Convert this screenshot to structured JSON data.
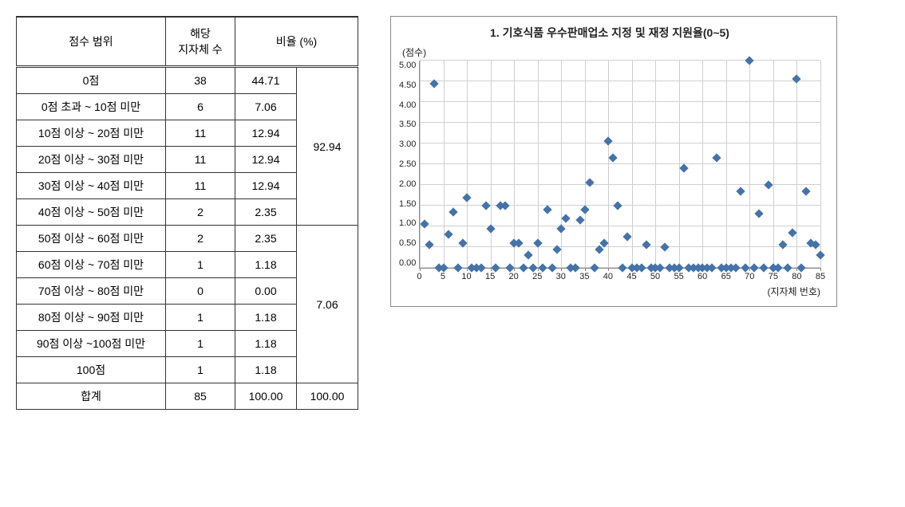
{
  "table": {
    "headers": {
      "range": "점수 범위",
      "count": "해당\n지자체 수",
      "ratio": "비율 (%)"
    },
    "rows": [
      {
        "range": "0점",
        "count": 38,
        "pct": "44.71"
      },
      {
        "range": "0점 초과 ~ 10점 미만",
        "count": 6,
        "pct": "7.06"
      },
      {
        "range": "10점 이상 ~ 20점 미만",
        "count": 11,
        "pct": "12.94"
      },
      {
        "range": "20점 이상 ~ 30점 미만",
        "count": 11,
        "pct": "12.94"
      },
      {
        "range": "30점 이상 ~ 40점 미만",
        "count": 11,
        "pct": "12.94"
      },
      {
        "range": "40점 이상 ~ 50점 미만",
        "count": 2,
        "pct": "2.35"
      },
      {
        "range": "50점 이상 ~ 60점 미만",
        "count": 2,
        "pct": "2.35"
      },
      {
        "range": "60점 이상 ~ 70점 미만",
        "count": 1,
        "pct": "1.18"
      },
      {
        "range": "70점 이상 ~ 80점 미만",
        "count": 0,
        "pct": "0.00"
      },
      {
        "range": "80점 이상 ~ 90점 미만",
        "count": 1,
        "pct": "1.18"
      },
      {
        "range": "90점 이상 ~100점 미만",
        "count": 1,
        "pct": "1.18"
      },
      {
        "range": "100점",
        "count": 1,
        "pct": "1.18"
      }
    ],
    "groups": [
      {
        "value": "92.94",
        "span": 6
      },
      {
        "value": "7.06",
        "span": 6
      }
    ],
    "total": {
      "label": "합계",
      "count": 85,
      "pct": "100.00",
      "group_total": "100.00"
    }
  },
  "chart": {
    "type": "scatter",
    "title": "1. 기호식품 우수판매업소 지정 및 재정 지원율(0~5)",
    "y_label": "(점수)",
    "x_label": "(지자체 번호)",
    "xlim": [
      0,
      85
    ],
    "ylim": [
      0,
      5
    ],
    "x_ticks": [
      0,
      5,
      10,
      15,
      20,
      25,
      30,
      35,
      40,
      45,
      50,
      55,
      60,
      65,
      70,
      75,
      80,
      85
    ],
    "y_ticks": [
      0.0,
      0.5,
      1.0,
      1.5,
      2.0,
      2.5,
      3.0,
      3.5,
      4.0,
      4.5,
      5.0
    ],
    "marker_color": "#4573a7",
    "marker_size": 8,
    "grid_color": "#d0d0d0",
    "axis_color": "#888888",
    "background_color": "#ffffff",
    "title_fontsize": 14,
    "label_fontsize": 12,
    "tick_fontsize": 11,
    "points": [
      {
        "x": 1,
        "y": 1.05
      },
      {
        "x": 2,
        "y": 0.55
      },
      {
        "x": 3,
        "y": 4.45
      },
      {
        "x": 4,
        "y": 0
      },
      {
        "x": 5,
        "y": 0
      },
      {
        "x": 6,
        "y": 0.8
      },
      {
        "x": 7,
        "y": 1.35
      },
      {
        "x": 8,
        "y": 0
      },
      {
        "x": 9,
        "y": 0.6
      },
      {
        "x": 10,
        "y": 1.7
      },
      {
        "x": 11,
        "y": 0
      },
      {
        "x": 12,
        "y": 0
      },
      {
        "x": 13,
        "y": 0
      },
      {
        "x": 14,
        "y": 1.5
      },
      {
        "x": 15,
        "y": 0.95
      },
      {
        "x": 16,
        "y": 0
      },
      {
        "x": 17,
        "y": 1.5
      },
      {
        "x": 18,
        "y": 1.5
      },
      {
        "x": 19,
        "y": 0
      },
      {
        "x": 20,
        "y": 0.6
      },
      {
        "x": 21,
        "y": 0.6
      },
      {
        "x": 22,
        "y": 0
      },
      {
        "x": 23,
        "y": 0.3
      },
      {
        "x": 24,
        "y": 0
      },
      {
        "x": 25,
        "y": 0.6
      },
      {
        "x": 26,
        "y": 0
      },
      {
        "x": 27,
        "y": 1.4
      },
      {
        "x": 28,
        "y": 0
      },
      {
        "x": 29,
        "y": 0.45
      },
      {
        "x": 30,
        "y": 0.95
      },
      {
        "x": 31,
        "y": 1.2
      },
      {
        "x": 32,
        "y": 0
      },
      {
        "x": 33,
        "y": 0
      },
      {
        "x": 34,
        "y": 1.15
      },
      {
        "x": 35,
        "y": 1.4
      },
      {
        "x": 36,
        "y": 2.05
      },
      {
        "x": 37,
        "y": 0
      },
      {
        "x": 38,
        "y": 0.45
      },
      {
        "x": 39,
        "y": 0.6
      },
      {
        "x": 40,
        "y": 3.05
      },
      {
        "x": 41,
        "y": 2.65
      },
      {
        "x": 42,
        "y": 1.5
      },
      {
        "x": 43,
        "y": 0
      },
      {
        "x": 44,
        "y": 0.75
      },
      {
        "x": 45,
        "y": 0
      },
      {
        "x": 46,
        "y": 0
      },
      {
        "x": 47,
        "y": 0
      },
      {
        "x": 48,
        "y": 0.55
      },
      {
        "x": 49,
        "y": 0
      },
      {
        "x": 50,
        "y": 0
      },
      {
        "x": 51,
        "y": 0
      },
      {
        "x": 52,
        "y": 0.5
      },
      {
        "x": 53,
        "y": 0
      },
      {
        "x": 54,
        "y": 0
      },
      {
        "x": 55,
        "y": 0
      },
      {
        "x": 56,
        "y": 2.4
      },
      {
        "x": 57,
        "y": 0
      },
      {
        "x": 58,
        "y": 0
      },
      {
        "x": 59,
        "y": 0
      },
      {
        "x": 60,
        "y": 0
      },
      {
        "x": 61,
        "y": 0
      },
      {
        "x": 62,
        "y": 0
      },
      {
        "x": 63,
        "y": 2.65
      },
      {
        "x": 64,
        "y": 0
      },
      {
        "x": 65,
        "y": 0
      },
      {
        "x": 66,
        "y": 0
      },
      {
        "x": 67,
        "y": 0
      },
      {
        "x": 68,
        "y": 1.85
      },
      {
        "x": 69,
        "y": 0
      },
      {
        "x": 70,
        "y": 5.0
      },
      {
        "x": 71,
        "y": 0
      },
      {
        "x": 72,
        "y": 1.3
      },
      {
        "x": 73,
        "y": 0
      },
      {
        "x": 74,
        "y": 2.0
      },
      {
        "x": 75,
        "y": 0
      },
      {
        "x": 76,
        "y": 0
      },
      {
        "x": 77,
        "y": 0.55
      },
      {
        "x": 78,
        "y": 0
      },
      {
        "x": 79,
        "y": 0.85
      },
      {
        "x": 80,
        "y": 4.55
      },
      {
        "x": 81,
        "y": 0
      },
      {
        "x": 82,
        "y": 1.85
      },
      {
        "x": 83,
        "y": 0.6
      },
      {
        "x": 84,
        "y": 0.55
      },
      {
        "x": 85,
        "y": 0.3
      }
    ]
  }
}
